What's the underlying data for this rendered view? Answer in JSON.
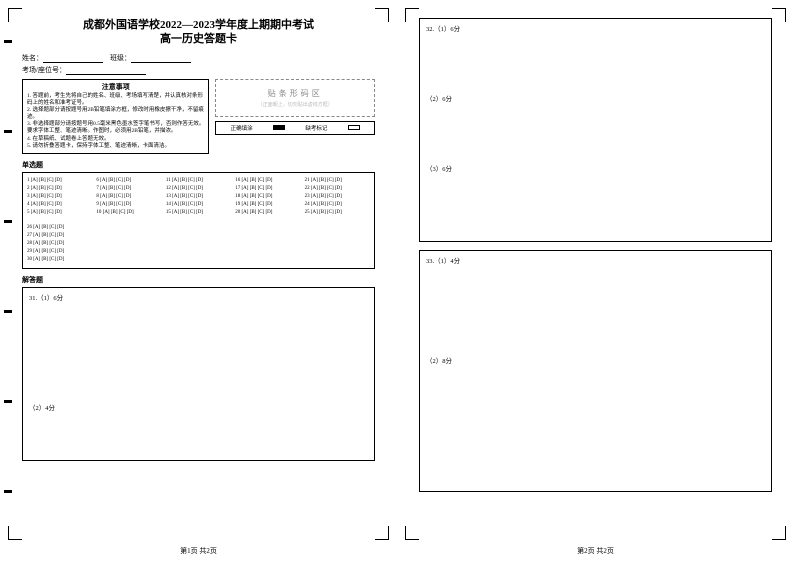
{
  "title_line1": "成都外国语学校2022—2023学年度上期期中考试",
  "title_line2": "高一历史答题卡",
  "info": {
    "name_label": "姓名：",
    "class_label": "班级：",
    "seat_label": "考场/座位号："
  },
  "notice": {
    "title": "注意事项",
    "item1": "1. 答题前，考生先将自己的姓名、班级、考场填写清楚，并认真核对条形码上的姓名和准考证号。",
    "item2": "2. 选择题部分请按题号用2B铅笔填涂方框，修改时用橡皮擦干净，不留痕迹。",
    "item3": "3. 非选择题部分请按题号用0.5毫米黑色墨水签字笔书写，否则作答无效。要求字体工整、笔迹清晰。作图时，必须用2B铅笔，并描浓。",
    "item4": "4. 在草稿纸、试题卷上答题无效。",
    "item5": "5. 请勿折叠答题卡，保持字体工整、笔迹清晰，卡面清洁。"
  },
  "barcode": {
    "label": "贴条形码区",
    "sub": "（正面朝上，切勿贴出虚线方框）"
  },
  "fill_sample": {
    "correct_label": "正确填涂",
    "wrong_label": "缺考标记"
  },
  "sections": {
    "mc_title": "单选题",
    "essay_title": "解答题"
  },
  "mc": {
    "opts": "[A] [B] [C] [D]",
    "cols": [
      [
        "1",
        "2",
        "3",
        "4",
        "5"
      ],
      [
        "6",
        "7",
        "8",
        "9",
        "10"
      ],
      [
        "11",
        "12",
        "13",
        "14",
        "15"
      ],
      [
        "16",
        "17",
        "18",
        "19",
        "20"
      ],
      [
        "21",
        "22",
        "23",
        "24",
        "25"
      ]
    ],
    "extra": [
      "26",
      "27",
      "28",
      "29",
      "30"
    ]
  },
  "q31": {
    "label": "31.（1）6分",
    "sub": "（2）4分"
  },
  "q32": {
    "label": "32.（1）6分",
    "sub1": "（2）6分",
    "sub2": "（3）6分"
  },
  "q33": {
    "label": "33.（1）4分",
    "sub": "（2）8分"
  },
  "footer": {
    "p1": "第1页 共2页",
    "p2": "第2页 共2页"
  }
}
